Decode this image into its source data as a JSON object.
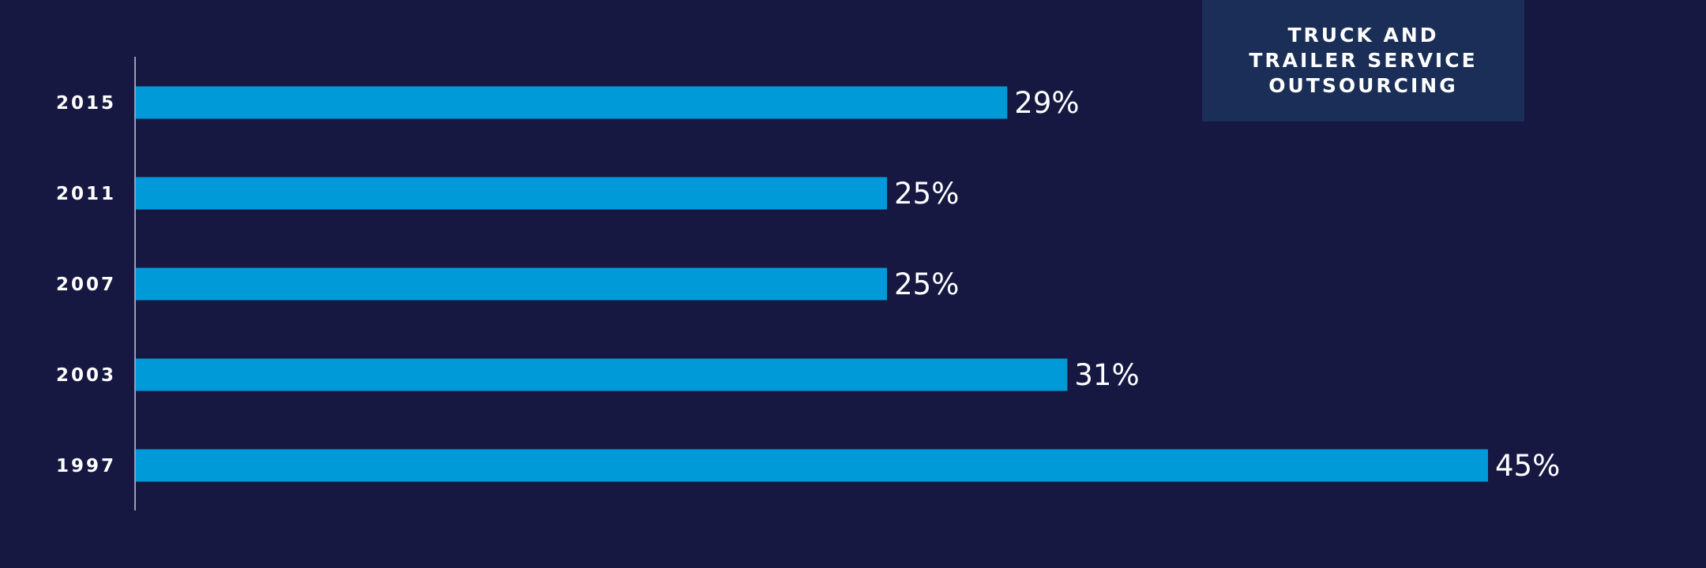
{
  "chart_data": {
    "type": "bar",
    "orientation": "horizontal",
    "title": "TRUCK AND TRAILER SERVICE OUTSOURCING",
    "categories": [
      "2015",
      "2011",
      "2007",
      "2003",
      "1997"
    ],
    "values": [
      29,
      25,
      25,
      31,
      45
    ],
    "value_labels": [
      "29%",
      "25%",
      "25%",
      "31%",
      "45%"
    ],
    "unit": "%",
    "xlim": [
      0,
      45
    ],
    "grid": false,
    "legend": "none"
  },
  "colors": {
    "background": "#161842",
    "bar": "#009ad8",
    "title_box": "#1a2e57",
    "text": "#ffffff",
    "axis": "#c8cad8"
  }
}
